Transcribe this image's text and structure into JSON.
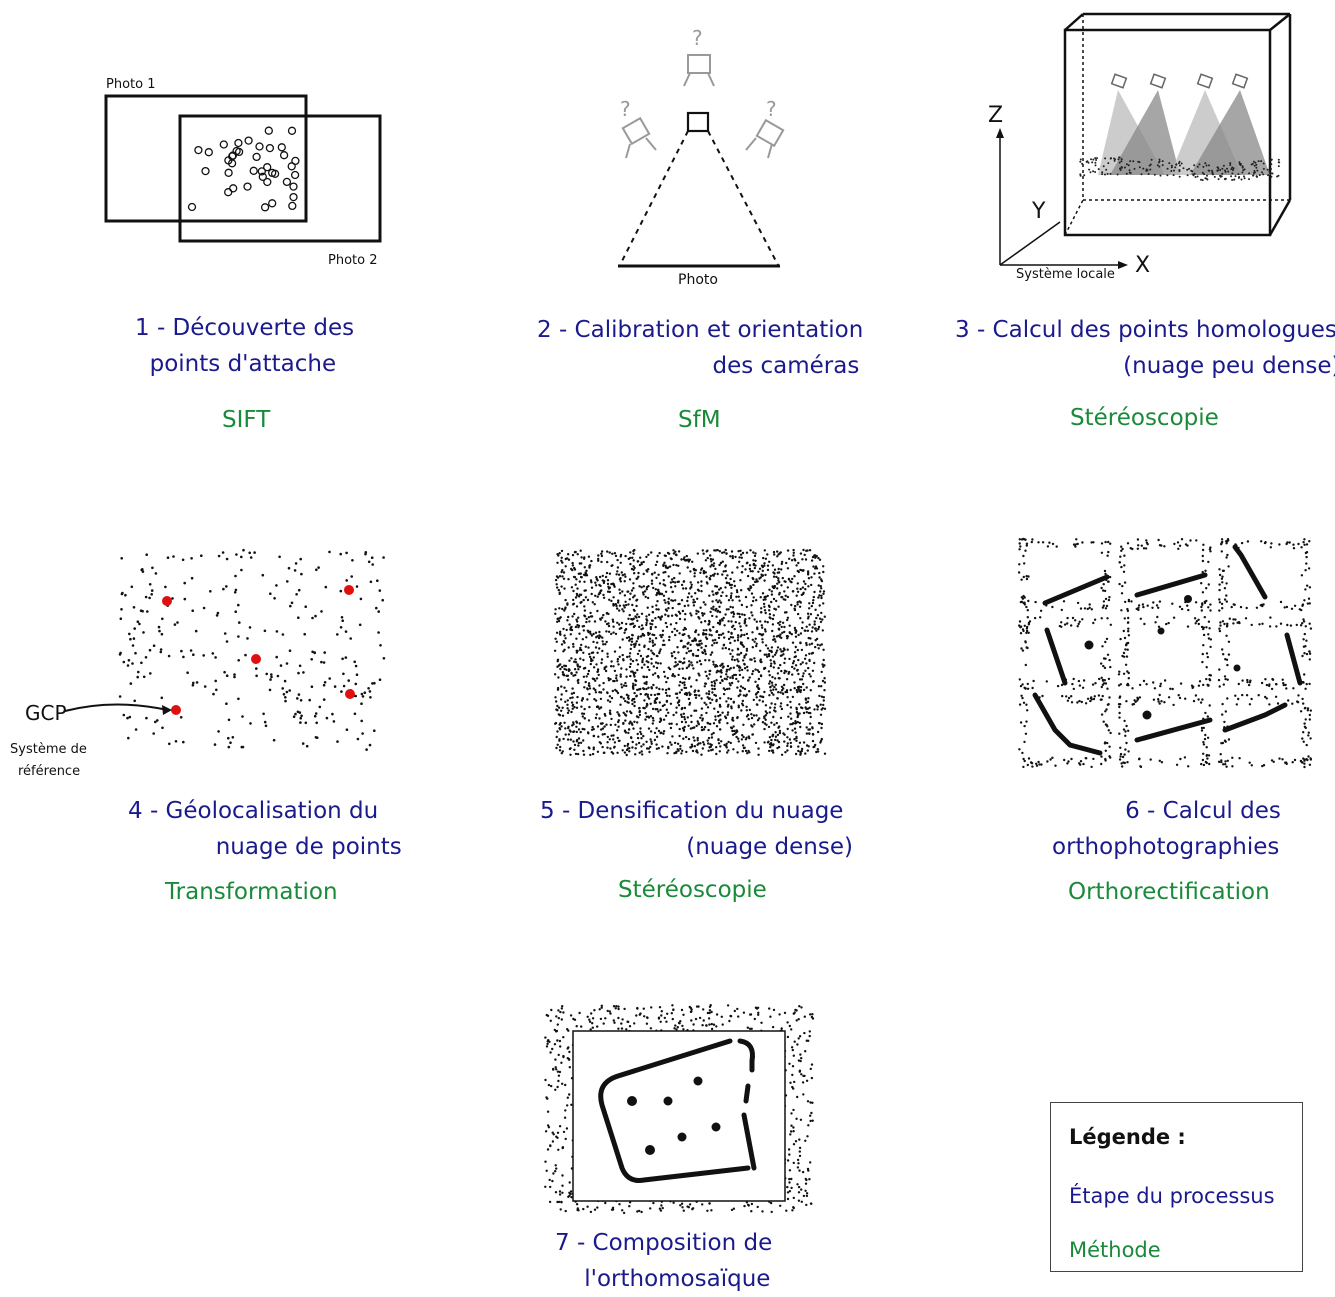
{
  "panel1": {
    "photo1": "Photo 1",
    "photo2": "Photo 2"
  },
  "panel2": {
    "photo": "Photo",
    "unknown": "?"
  },
  "panel3": {
    "axis_z": "Z",
    "axis_y": "Y",
    "axis_x": "X",
    "system": "Système locale"
  },
  "panel4": {
    "gcp": "GCP",
    "ref_line1": "Système de",
    "ref_line2": "référence"
  },
  "steps": [
    {
      "title": "1 - Découverte des\n  points d'attache",
      "method": "SIFT"
    },
    {
      "title": "2 - Calibration et orientation\n                        des caméras",
      "method": "SfM"
    },
    {
      "title": "3 - Calcul des points homologues\n                       (nuage peu dense)",
      "method": "Stéréoscopie"
    },
    {
      "title": "4 - Géolocalisation du\n            nuage de points",
      "method": "Transformation"
    },
    {
      "title": "5 - Densification du nuage\n                    (nuage dense)",
      "method": "Stéréoscopie"
    },
    {
      "title": "          6 - Calcul des\northophotographies",
      "method": "Orthorectification"
    },
    {
      "title": "7 - Composition de\n    l'orthomosaïque",
      "method": ""
    }
  ],
  "legend": {
    "title": "Légende :",
    "step": "Étape du processus",
    "method": "Méthode"
  },
  "colors": {
    "step": "#1a1a8c",
    "method": "#1a8a3a",
    "gcp": "#e01010"
  }
}
